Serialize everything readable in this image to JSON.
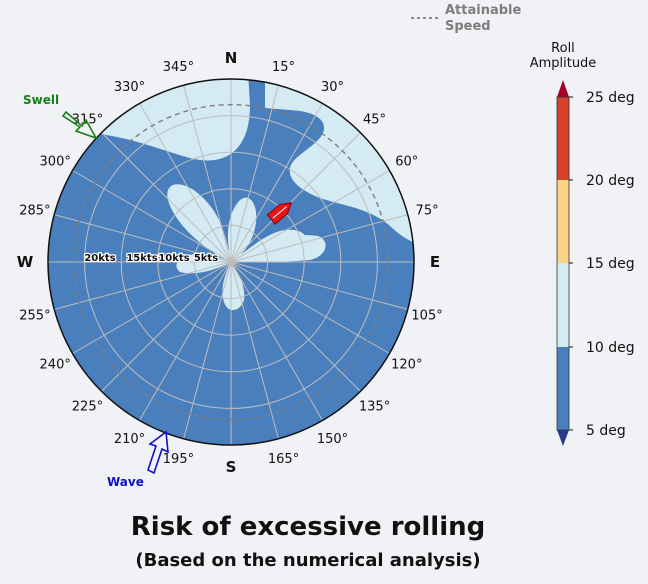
{
  "title": "Risk of excessive rolling",
  "subtitle": "(Based on the numerical analysis)",
  "legend": {
    "attainable_speed_label": "Attainable\nSpeed"
  },
  "colorbar": {
    "title": "Roll\nAmplitude",
    "ticks": [
      "5 deg",
      "10 deg",
      "15 deg",
      "20 deg",
      "25 deg"
    ],
    "colors": {
      "band_5_10": "#4a7fbd",
      "band_10_15": "#d4ebf4",
      "band_15_20": "#fbd387",
      "band_20_25": "#d7412c",
      "under": "#2b3a8c",
      "over": "#a50026"
    }
  },
  "compass": {
    "cardinals": {
      "N": "N",
      "E": "E",
      "S": "S",
      "W": "W"
    },
    "angle_labels": [
      "15°",
      "30°",
      "45°",
      "60°",
      "75°",
      "105°",
      "120°",
      "135°",
      "150°",
      "165°",
      "195°",
      "210°",
      "225°",
      "240°",
      "255°",
      "285°",
      "300°",
      "315°",
      "330°",
      "345°"
    ]
  },
  "speed_labels": [
    "20kts",
    "15kts",
    "10kts",
    "5kts"
  ],
  "swell_label": "Swell",
  "wave_label": "Wave",
  "chart_data": {
    "type": "polar-heatmap",
    "title": "Risk of excessive rolling",
    "subtitle": "(Based on the numerical analysis)",
    "radial_axis": {
      "unit": "kts",
      "ticks": [
        5,
        10,
        15,
        20
      ],
      "max": 25
    },
    "angular_axis": {
      "zero": "N",
      "direction": "clockwise",
      "tick_step_deg": 15
    },
    "attainable_speed_kts": 21.5,
    "swell_direction_deg": 315,
    "wave_direction_deg": 200,
    "ship_heading_deg": 50,
    "ship_speed_kts": 11,
    "base_level": "5-10 deg",
    "risk_region_level": "10-15 deg",
    "colorbar_range_deg": [
      5,
      25
    ]
  }
}
